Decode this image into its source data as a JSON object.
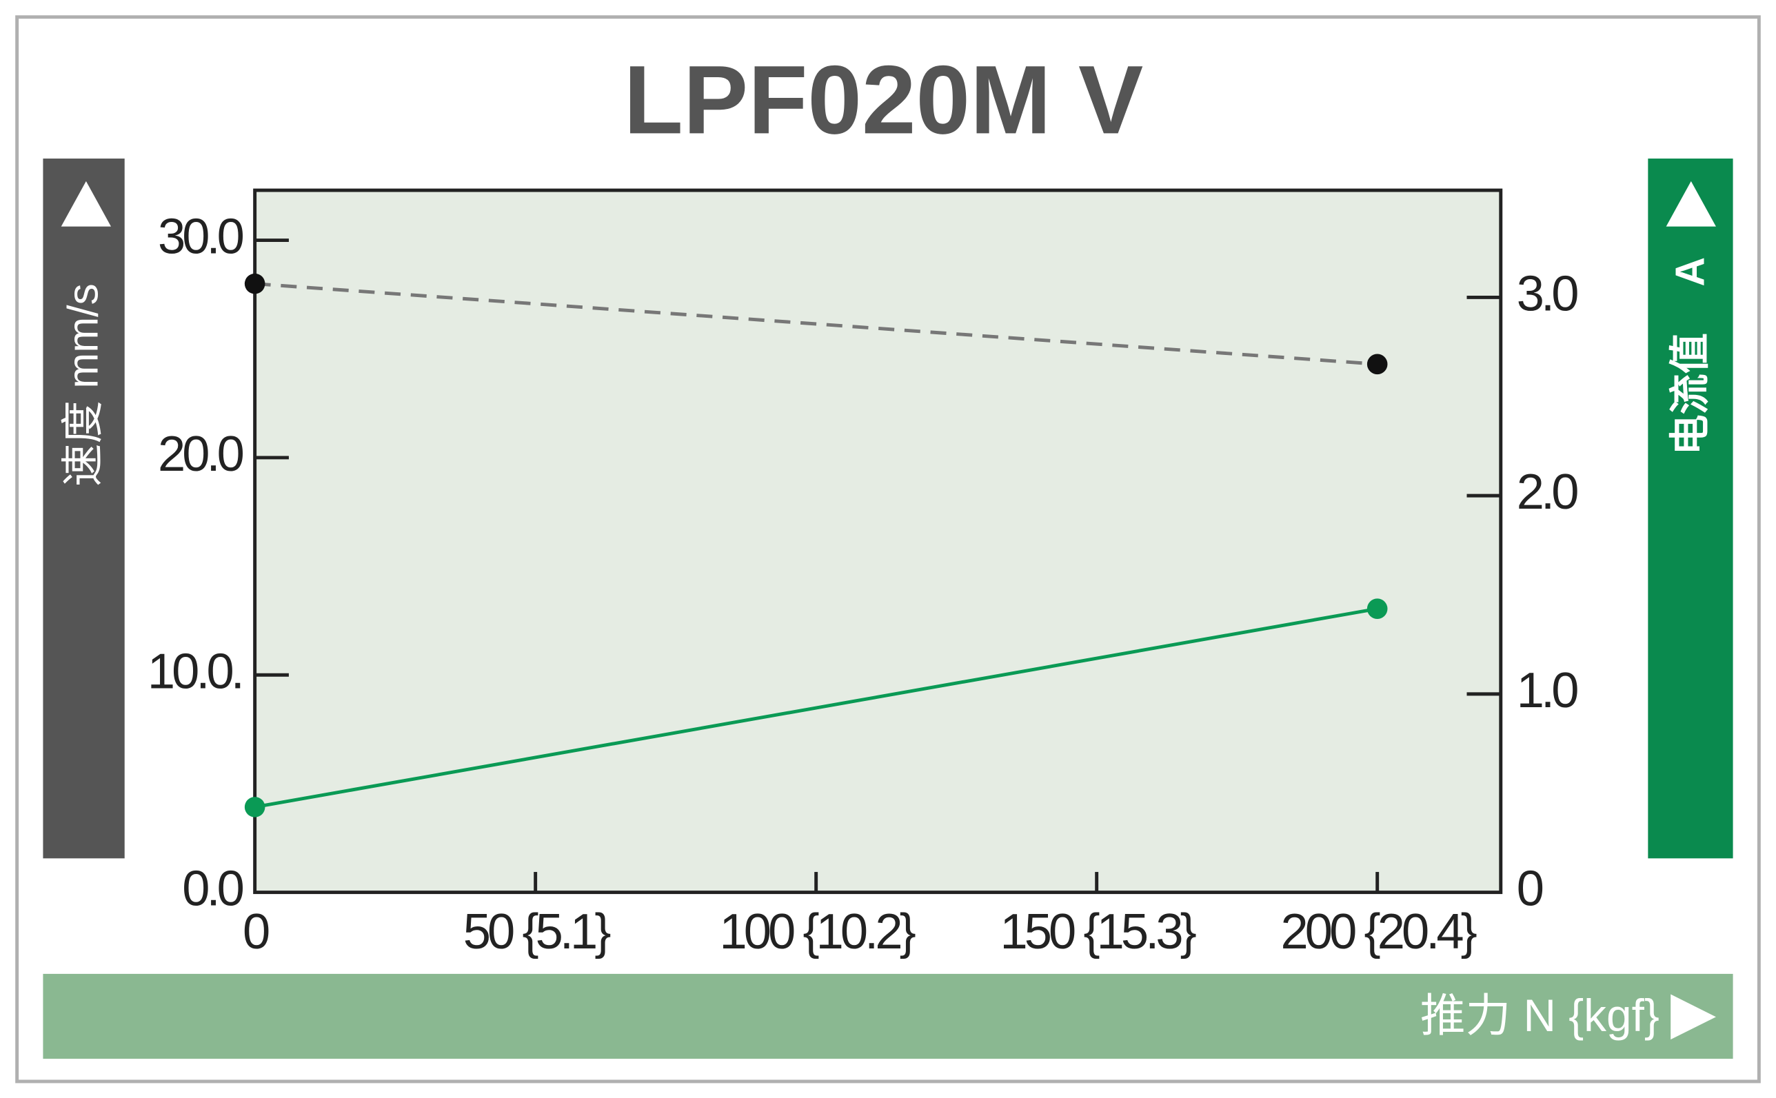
{
  "chart_data": {
    "type": "line",
    "title": "LPF020M V",
    "y_label": "速度 mm/s",
    "y2_label": "电流值",
    "y2_unit": "A",
    "x_label": "推力 N {kgf}",
    "x": [
      0,
      200
    ],
    "xlim": [
      0,
      222
    ],
    "xticks": [
      0,
      {
        "value": 50,
        "label": "50 {5.1}"
      },
      {
        "value": 100,
        "label": "100 {10.2}"
      },
      {
        "value": 150,
        "label": "150 {15.3}"
      },
      {
        "value": 200,
        "label": "200 {20.4}"
      }
    ],
    "ylim": [
      0,
      32.3
    ],
    "yticks": [
      {
        "value": 0,
        "label": "0.0"
      },
      {
        "value": 10,
        "label": "10.0."
      },
      {
        "value": 20,
        "label": "20.0"
      },
      {
        "value": 30,
        "label": "30.0"
      }
    ],
    "y2lim": [
      0,
      3.54
    ],
    "y2ticks": [
      0,
      {
        "value": 1,
        "label": "1.0"
      },
      {
        "value": 2,
        "label": "2.0"
      },
      {
        "value": 3,
        "label": "3.0"
      }
    ],
    "series": [
      {
        "color": "#111111",
        "line_color": "#777777",
        "dashed": true,
        "values": [
          28.0,
          24.3
        ]
      },
      {
        "color": "#0a9a55",
        "line_color": "#0a9a55",
        "dashed": false,
        "axis": "y2",
        "values": [
          0.43,
          1.43
        ]
      }
    ]
  }
}
